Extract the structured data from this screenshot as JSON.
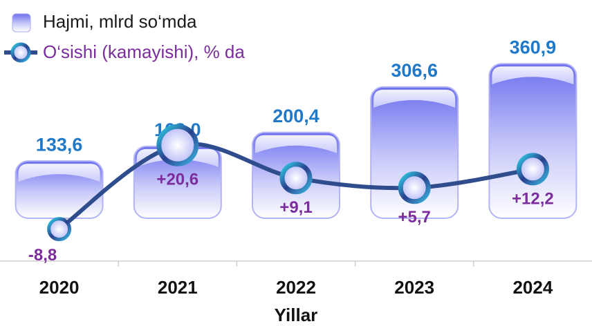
{
  "chart_data": {
    "type": "bar",
    "categories": [
      "2020",
      "2021",
      "2022",
      "2023",
      "2024"
    ],
    "x_label": "Yillar",
    "series": [
      {
        "name": "Hajmi, mlrd so‘mda",
        "type": "bar",
        "color": "#7f82f2",
        "label_color": "#1f78c8",
        "values": [
          133.6,
          168.0,
          200.4,
          306.6,
          360.9
        ],
        "value_labels": [
          "133,6",
          "168,0",
          "200,4",
          "306,6",
          "360,9"
        ]
      },
      {
        "name": "O‘sishi (kamayishi), % da",
        "type": "line",
        "axis": "y2",
        "color": "#2f4c8c",
        "label_color": "#7b2d9c",
        "values": [
          -8.8,
          20.6,
          9.1,
          5.7,
          12.2
        ],
        "value_labels": [
          "-8,8",
          "+20,6",
          "+9,1",
          "+5,7",
          "+12,2"
        ]
      }
    ],
    "ylim": [
      -100,
      400
    ],
    "y2lim": [
      -20,
      55
    ]
  }
}
